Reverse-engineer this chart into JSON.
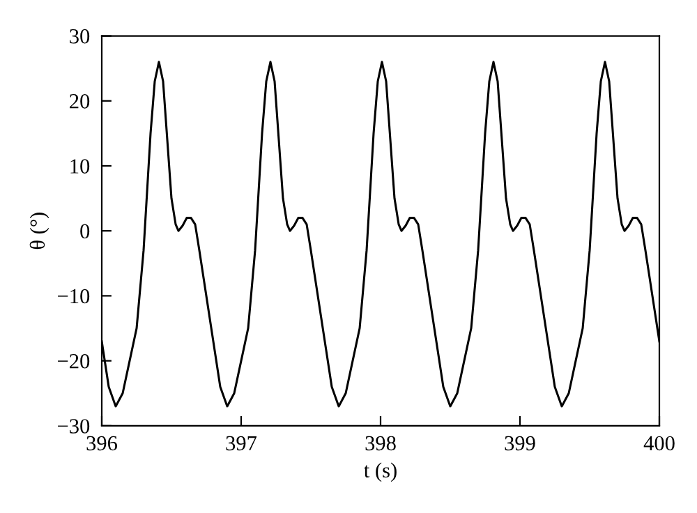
{
  "chart_data": {
    "type": "line",
    "xlabel": "t (s)",
    "ylabel": "θ (°)",
    "xlim": [
      396,
      400
    ],
    "xticks": [
      396,
      397,
      398,
      399,
      400
    ],
    "ylim": [
      -30,
      30
    ],
    "yticks": [
      -30,
      -20,
      -10,
      0,
      10,
      20,
      30
    ],
    "grid": false,
    "marker": "none",
    "line_style": "solid",
    "series": [
      {
        "color": "#000000",
        "x": [
          396.0,
          396.05,
          396.1,
          396.15,
          396.2,
          396.25,
          396.3,
          396.35,
          396.38,
          396.41,
          396.44,
          396.47,
          396.5,
          396.53,
          396.55,
          396.58,
          396.61,
          396.64,
          396.67,
          396.7,
          396.75,
          396.8,
          396.85,
          396.9,
          396.95,
          397.0,
          397.05,
          397.1,
          397.15,
          397.18,
          397.21,
          397.24,
          397.27,
          397.3,
          397.33,
          397.35,
          397.38,
          397.41,
          397.44,
          397.47,
          397.5,
          397.55,
          397.6,
          397.65,
          397.7,
          397.75,
          397.8,
          397.85,
          397.9,
          397.95,
          397.98,
          398.01,
          398.04,
          398.07,
          398.1,
          398.13,
          398.15,
          398.18,
          398.21,
          398.24,
          398.27,
          398.3,
          398.35,
          398.4,
          398.45,
          398.5,
          398.55,
          398.6,
          398.65,
          398.7,
          398.75,
          398.78,
          398.81,
          398.84,
          398.87,
          398.9,
          398.93,
          398.95,
          398.98,
          399.01,
          399.04,
          399.07,
          399.1,
          399.15,
          399.2,
          399.25,
          399.3,
          399.35,
          399.4,
          399.45,
          399.5,
          399.55,
          399.58,
          399.61,
          399.64,
          399.67,
          399.7,
          399.73,
          399.75,
          399.78,
          399.81,
          399.84,
          399.87,
          399.9,
          399.95,
          400.0
        ],
        "values": [
          -17,
          -24,
          -27,
          -25,
          -20,
          -15,
          -3,
          15,
          23,
          26,
          23,
          14,
          5,
          1,
          0,
          0.8,
          2,
          2,
          1,
          -3,
          -10,
          -17,
          -24,
          -27,
          -25,
          -20,
          -15,
          -3,
          15,
          23,
          26,
          23,
          14,
          5,
          1,
          0,
          0.8,
          2,
          2,
          1,
          -3,
          -10,
          -17,
          -24,
          -27,
          -25,
          -20,
          -15,
          -3,
          15,
          23,
          26,
          23,
          14,
          5,
          1,
          0,
          0.8,
          2,
          2,
          1,
          -3,
          -10,
          -17,
          -24,
          -27,
          -25,
          -20,
          -15,
          -3,
          15,
          23,
          26,
          23,
          14,
          5,
          1,
          0,
          0.8,
          2,
          2,
          1,
          -3,
          -10,
          -17,
          -24,
          -27,
          -25,
          -20,
          -15,
          -3,
          15,
          23,
          26,
          23,
          14,
          5,
          1,
          0,
          0.8,
          2,
          2,
          1,
          -3,
          -10,
          -17
        ]
      }
    ]
  }
}
